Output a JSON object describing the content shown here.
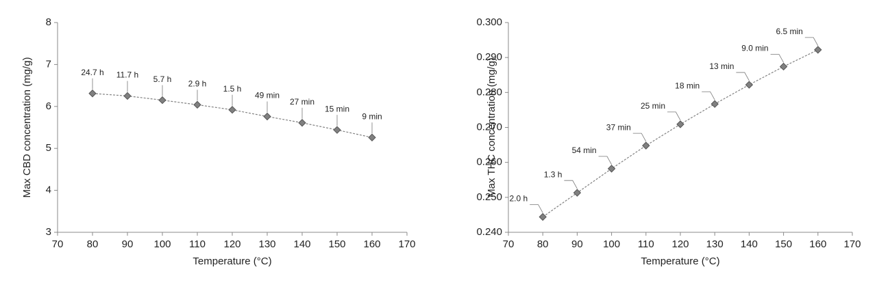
{
  "chart_data": [
    {
      "type": "line",
      "x_label": "Temperature (°C)",
      "y_label": "Max CBD concentration (mg/g)",
      "x": [
        80,
        90,
        100,
        110,
        120,
        130,
        140,
        150,
        160
      ],
      "values": [
        6.31,
        6.25,
        6.15,
        6.04,
        5.92,
        5.76,
        5.61,
        5.44,
        5.26
      ],
      "annotations": [
        "24.7 h",
        "11.7 h",
        "5.7 h",
        "2.9 h",
        "1.5 h",
        "49 min",
        "27 min",
        "15 min",
        "9 min"
      ],
      "color": "#808080",
      "xlim": [
        70,
        170
      ],
      "xticks": [
        70,
        80,
        90,
        100,
        110,
        120,
        130,
        140,
        150,
        160,
        170
      ],
      "ylim": [
        3,
        8
      ],
      "yticks": [
        3,
        4,
        5,
        6,
        7,
        8
      ]
    },
    {
      "type": "line",
      "x_label": "Temperature (°C)",
      "y_label": "Max THC concentration (mg/g)",
      "x": [
        80,
        90,
        100,
        110,
        120,
        130,
        140,
        150,
        160
      ],
      "values": [
        0.2444,
        0.2513,
        0.2582,
        0.2648,
        0.2709,
        0.2767,
        0.2822,
        0.2874,
        0.2922
      ],
      "annotations": [
        "2.0 h",
        "1.3 h",
        "54 min",
        "37 min",
        "25 min",
        "18 min",
        "13 min",
        "9.0 min",
        "6.5 min"
      ],
      "color": "#808080",
      "xlim": [
        70,
        170
      ],
      "xticks": [
        70,
        80,
        90,
        100,
        110,
        120,
        130,
        140,
        150,
        160,
        170
      ],
      "ylim": [
        0.24,
        0.3
      ],
      "yticks": [
        {
          "value": 0.24,
          "label": "0.240"
        },
        {
          "value": 0.25,
          "label": "0.250"
        },
        {
          "value": 0.26,
          "label": "0.260"
        },
        {
          "value": 0.27,
          "label": "0.270"
        },
        {
          "value": 0.28,
          "label": "0.280"
        },
        {
          "value": 0.29,
          "label": "0.290"
        },
        {
          "value": 0.3,
          "label": "0.300"
        }
      ]
    }
  ]
}
